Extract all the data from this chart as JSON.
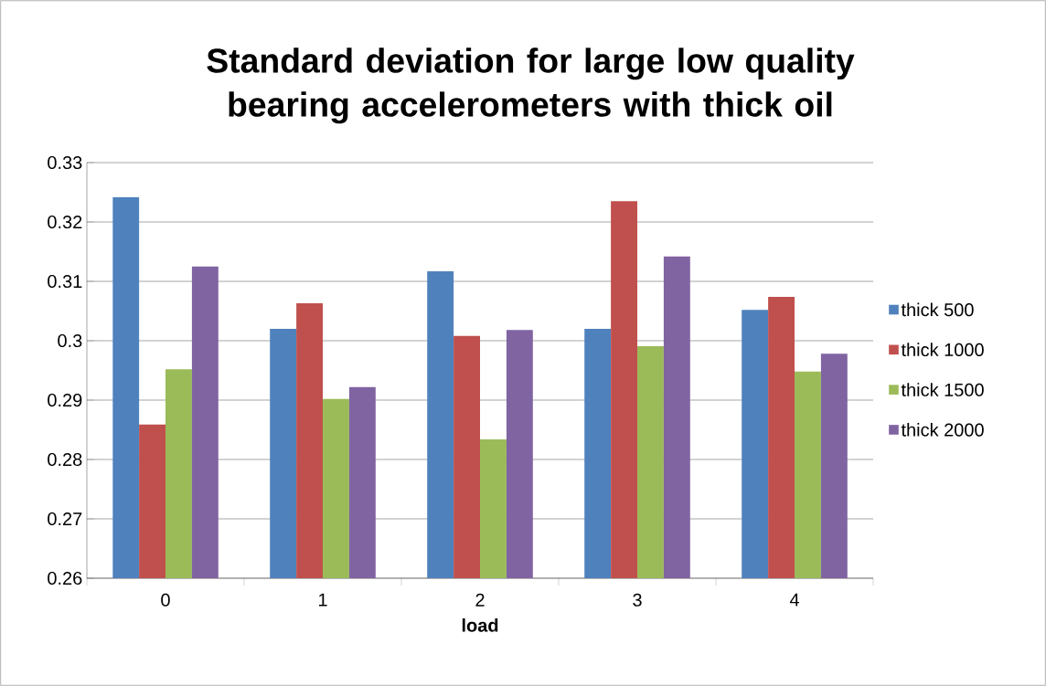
{
  "chart_data": {
    "type": "bar",
    "title": "Standard deviation for large low quality bearing accelerometers with thick oil",
    "xlabel": "load",
    "categories": [
      "0",
      "1",
      "2",
      "3",
      "4"
    ],
    "series": [
      {
        "name": "thick 500",
        "color": "#4f81bd",
        "values": [
          0.3242,
          0.302,
          0.3117,
          0.302,
          0.3052
        ]
      },
      {
        "name": "thick 1000",
        "color": "#c0504d",
        "values": [
          0.2859,
          0.3063,
          0.3008,
          0.3235,
          0.3074
        ]
      },
      {
        "name": "thick 1500",
        "color": "#9bbb59",
        "values": [
          0.2952,
          0.2902,
          0.2834,
          0.2991,
          0.2948
        ]
      },
      {
        "name": "thick 2000",
        "color": "#8064a2",
        "values": [
          0.3125,
          0.2922,
          0.3018,
          0.3142,
          0.2978
        ]
      }
    ],
    "ylim": [
      0.26,
      0.33
    ],
    "yticks": [
      0.26,
      0.27,
      0.28,
      0.29,
      0.3,
      0.31,
      0.32,
      0.33
    ],
    "grid": "y",
    "legend": "right"
  }
}
